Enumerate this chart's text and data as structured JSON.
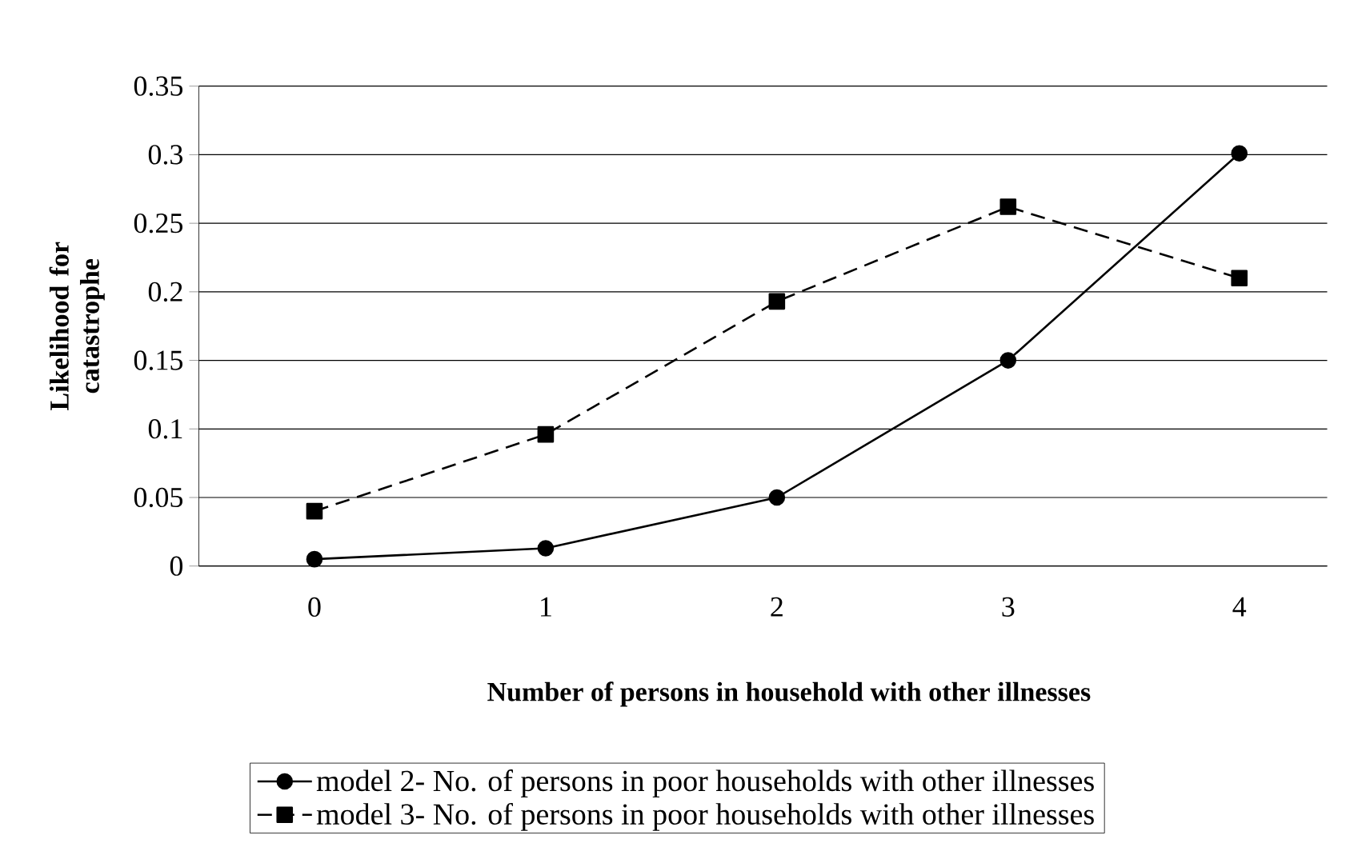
{
  "chart_data": {
    "type": "line",
    "xlabel": "Number of persons in household with other illnesses",
    "ylabel": "Likelihood for catastrophe",
    "categories": [
      "0",
      "1",
      "2",
      "3",
      "4"
    ],
    "series": [
      {
        "name": "model 2- No. of persons in poor households with other illnesses",
        "color": "#000000",
        "marker": "circle",
        "line_style": "solid",
        "values": [
          0.005,
          0.013,
          0.05,
          0.15,
          0.301
        ]
      },
      {
        "name": "model 3- No. of persons in poor households with other illnesses",
        "color": "#000000",
        "marker": "square",
        "line_style": "dashed",
        "values": [
          0.04,
          0.096,
          0.193,
          0.262,
          0.21
        ]
      }
    ],
    "ylim": [
      0,
      0.35
    ],
    "yticks": [
      0,
      0.05,
      0.1,
      0.15,
      0.2,
      0.25,
      0.3,
      0.35
    ],
    "grid": "y",
    "legend": "bottom"
  }
}
